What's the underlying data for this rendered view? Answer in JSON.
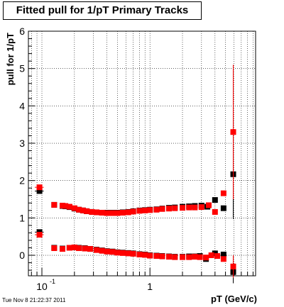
{
  "title": "Fitted pull for 1/pT  Primary Tracks",
  "datestamp": "Tue Nov  8 21:22:37 2011",
  "chart_data": {
    "type": "scatter",
    "title": "Fitted pull for 1/pT  Primary Tracks",
    "xlabel": "pT (GeV/c)",
    "ylabel": "pull for 1/pT",
    "xscale": "log",
    "xlim": [
      0.075,
      9.5
    ],
    "ylim": [
      -0.55,
      6.0
    ],
    "x_tick_labels": [
      {
        "value": 0.1,
        "base": "10",
        "exp": "-1"
      },
      {
        "value": 1,
        "base": "1",
        "exp": ""
      }
    ],
    "y_ticks": [
      0,
      1,
      2,
      3,
      4,
      5,
      6
    ],
    "grid": true,
    "series": [
      {
        "color": "#000000",
        "marker": "square",
        "points": [
          {
            "x": 0.095,
            "y": 1.72,
            "ex": 0.006
          },
          {
            "x": 0.095,
            "y": 0.62,
            "ex": 0.006
          },
          {
            "x": 0.13,
            "y": 1.35
          },
          {
            "x": 0.155,
            "y": 1.32
          },
          {
            "x": 0.165,
            "y": 1.31
          },
          {
            "x": 0.18,
            "y": 1.29
          },
          {
            "x": 0.2,
            "y": 1.25
          },
          {
            "x": 0.22,
            "y": 1.22
          },
          {
            "x": 0.24,
            "y": 1.2
          },
          {
            "x": 0.26,
            "y": 1.18
          },
          {
            "x": 0.29,
            "y": 1.16
          },
          {
            "x": 0.32,
            "y": 1.15
          },
          {
            "x": 0.36,
            "y": 1.14
          },
          {
            "x": 0.4,
            "y": 1.14
          },
          {
            "x": 0.45,
            "y": 1.14
          },
          {
            "x": 0.5,
            "y": 1.14
          },
          {
            "x": 0.56,
            "y": 1.15
          },
          {
            "x": 0.63,
            "y": 1.16
          },
          {
            "x": 0.7,
            "y": 1.18
          },
          {
            "x": 0.8,
            "y": 1.2
          },
          {
            "x": 0.9,
            "y": 1.21
          },
          {
            "x": 1.0,
            "y": 1.22
          },
          {
            "x": 1.15,
            "y": 1.23
          },
          {
            "x": 1.3,
            "y": 1.25
          },
          {
            "x": 1.5,
            "y": 1.27
          },
          {
            "x": 1.7,
            "y": 1.28
          },
          {
            "x": 2.0,
            "y": 1.3
          },
          {
            "x": 2.3,
            "y": 1.31
          },
          {
            "x": 2.6,
            "y": 1.32
          },
          {
            "x": 3.0,
            "y": 1.33
          },
          {
            "x": 3.4,
            "y": 1.3
          },
          {
            "x": 4.0,
            "y": 1.48
          },
          {
            "x": 4.8,
            "y": 1.26
          },
          {
            "x": 5.9,
            "y": 2.17,
            "ey": 1.2
          },
          {
            "x": 0.13,
            "y": 0.2
          },
          {
            "x": 0.155,
            "y": 0.18
          },
          {
            "x": 0.18,
            "y": 0.2
          },
          {
            "x": 0.2,
            "y": 0.21
          },
          {
            "x": 0.22,
            "y": 0.2
          },
          {
            "x": 0.25,
            "y": 0.19
          },
          {
            "x": 0.28,
            "y": 0.17
          },
          {
            "x": 0.32,
            "y": 0.15
          },
          {
            "x": 0.36,
            "y": 0.13
          },
          {
            "x": 0.4,
            "y": 0.11
          },
          {
            "x": 0.45,
            "y": 0.1
          },
          {
            "x": 0.5,
            "y": 0.08
          },
          {
            "x": 0.56,
            "y": 0.07
          },
          {
            "x": 0.63,
            "y": 0.06
          },
          {
            "x": 0.7,
            "y": 0.05
          },
          {
            "x": 0.8,
            "y": 0.03
          },
          {
            "x": 0.9,
            "y": 0.02
          },
          {
            "x": 1.0,
            "y": 0.0
          },
          {
            "x": 1.15,
            "y": -0.01
          },
          {
            "x": 1.3,
            "y": -0.02
          },
          {
            "x": 1.5,
            "y": -0.03
          },
          {
            "x": 1.7,
            "y": -0.04
          },
          {
            "x": 2.0,
            "y": -0.04
          },
          {
            "x": 2.3,
            "y": -0.03
          },
          {
            "x": 2.6,
            "y": -0.03
          },
          {
            "x": 2.9,
            "y": -0.02
          },
          {
            "x": 3.3,
            "y": -0.1
          },
          {
            "x": 4.0,
            "y": 0.05
          },
          {
            "x": 4.8,
            "y": 0.02
          },
          {
            "x": 5.9,
            "y": -0.45,
            "ey": 0.3
          }
        ]
      },
      {
        "color": "#ff0000",
        "marker": "square",
        "points": [
          {
            "x": 0.095,
            "y": 1.82,
            "ex": 0.006
          },
          {
            "x": 0.095,
            "y": 0.55,
            "ex": 0.006
          },
          {
            "x": 0.13,
            "y": 1.35
          },
          {
            "x": 0.155,
            "y": 1.33
          },
          {
            "x": 0.165,
            "y": 1.32
          },
          {
            "x": 0.18,
            "y": 1.3
          },
          {
            "x": 0.2,
            "y": 1.26
          },
          {
            "x": 0.22,
            "y": 1.22
          },
          {
            "x": 0.24,
            "y": 1.2
          },
          {
            "x": 0.26,
            "y": 1.18
          },
          {
            "x": 0.29,
            "y": 1.16
          },
          {
            "x": 0.32,
            "y": 1.15
          },
          {
            "x": 0.36,
            "y": 1.14
          },
          {
            "x": 0.4,
            "y": 1.13
          },
          {
            "x": 0.45,
            "y": 1.13
          },
          {
            "x": 0.5,
            "y": 1.13
          },
          {
            "x": 0.56,
            "y": 1.14
          },
          {
            "x": 0.63,
            "y": 1.15
          },
          {
            "x": 0.7,
            "y": 1.17
          },
          {
            "x": 0.8,
            "y": 1.19
          },
          {
            "x": 0.9,
            "y": 1.2
          },
          {
            "x": 1.0,
            "y": 1.21
          },
          {
            "x": 1.15,
            "y": 1.22
          },
          {
            "x": 1.3,
            "y": 1.24
          },
          {
            "x": 1.5,
            "y": 1.25
          },
          {
            "x": 1.7,
            "y": 1.26
          },
          {
            "x": 2.0,
            "y": 1.27
          },
          {
            "x": 2.3,
            "y": 1.28
          },
          {
            "x": 2.6,
            "y": 1.28
          },
          {
            "x": 3.0,
            "y": 1.29
          },
          {
            "x": 3.5,
            "y": 1.34
          },
          {
            "x": 4.0,
            "y": 1.16
          },
          {
            "x": 4.8,
            "y": 1.66
          },
          {
            "x": 5.9,
            "y": 3.3,
            "ey": 1.8
          },
          {
            "x": 0.13,
            "y": 0.19
          },
          {
            "x": 0.155,
            "y": 0.17
          },
          {
            "x": 0.18,
            "y": 0.2
          },
          {
            "x": 0.2,
            "y": 0.21
          },
          {
            "x": 0.22,
            "y": 0.19
          },
          {
            "x": 0.25,
            "y": 0.18
          },
          {
            "x": 0.28,
            "y": 0.17
          },
          {
            "x": 0.32,
            "y": 0.14
          },
          {
            "x": 0.36,
            "y": 0.12
          },
          {
            "x": 0.4,
            "y": 0.1
          },
          {
            "x": 0.45,
            "y": 0.09
          },
          {
            "x": 0.5,
            "y": 0.07
          },
          {
            "x": 0.56,
            "y": 0.06
          },
          {
            "x": 0.63,
            "y": 0.05
          },
          {
            "x": 0.7,
            "y": 0.04
          },
          {
            "x": 0.8,
            "y": 0.02
          },
          {
            "x": 0.9,
            "y": 0.01
          },
          {
            "x": 1.0,
            "y": -0.01
          },
          {
            "x": 1.15,
            "y": -0.02
          },
          {
            "x": 1.3,
            "y": -0.03
          },
          {
            "x": 1.5,
            "y": -0.04
          },
          {
            "x": 1.7,
            "y": -0.05
          },
          {
            "x": 2.0,
            "y": -0.05
          },
          {
            "x": 2.3,
            "y": -0.05
          },
          {
            "x": 2.6,
            "y": -0.04
          },
          {
            "x": 2.9,
            "y": -0.05
          },
          {
            "x": 3.3,
            "y": -0.06
          },
          {
            "x": 3.7,
            "y": 0.0
          },
          {
            "x": 4.2,
            "y": -0.02
          },
          {
            "x": 4.8,
            "y": -0.1
          },
          {
            "x": 5.9,
            "y": -0.3,
            "ey": 0.3
          }
        ]
      }
    ]
  }
}
